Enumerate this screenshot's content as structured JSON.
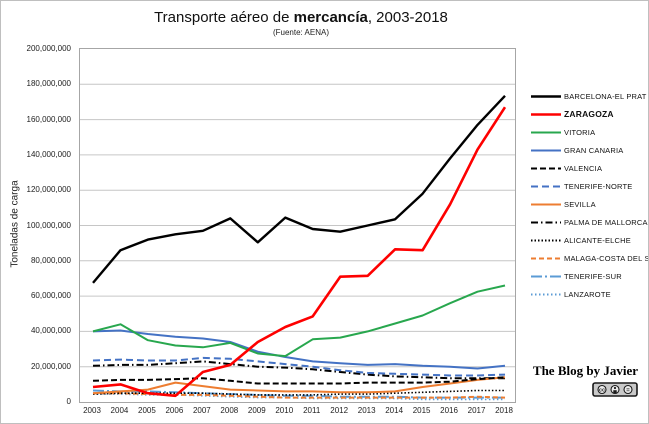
{
  "title": {
    "pre": "Transporte aéreo de ",
    "bold": "mercancía",
    "post": ", 2003-2018",
    "subtitle": "(Fuente: AENA)"
  },
  "axes": {
    "y_label": "Toneladas de carga"
  },
  "footer": {
    "credit": "The Blog by Javier",
    "license_badge": "creative-commons-badge"
  },
  "chart_data": {
    "type": "line",
    "title": "Transporte aéreo de mercancía, 2003-2018",
    "subtitle": "(Fuente: AENA)",
    "xlabel": "",
    "ylabel": "Toneladas de carga",
    "ylim": [
      0,
      200000000
    ],
    "ytick_step": 20000000,
    "ytick_labels": [
      "0",
      "20,000,000",
      "40,000,000",
      "60,000,000",
      "80,000,000",
      "100,000,000",
      "120,000,000",
      "140,000,000",
      "160,000,000",
      "180,000,000",
      "200,000,000"
    ],
    "grid": "horizontal",
    "legend_position": "right",
    "categories": [
      "2003",
      "2004",
      "2005",
      "2006",
      "2007",
      "2008",
      "2009",
      "2010",
      "2011",
      "2012",
      "2013",
      "2014",
      "2015",
      "2016",
      "2017",
      "2018"
    ],
    "series": [
      {
        "name": "BARCELONA-EL PRAT",
        "color": "#000000",
        "dash": "",
        "width": 2.4,
        "bold": false,
        "values": [
          67500000,
          86000000,
          92000000,
          95000000,
          97000000,
          104000000,
          90500000,
          104500000,
          98000000,
          96500000,
          100000000,
          103500000,
          118000000,
          138000000,
          157000000,
          173500000
        ]
      },
      {
        "name": "ZARAGOZA",
        "color": "#fe0000",
        "dash": "",
        "width": 2.6,
        "bold": true,
        "values": [
          8500000,
          10000000,
          5000000,
          3500000,
          17000000,
          21000000,
          34000000,
          42500000,
          48500000,
          71000000,
          71500000,
          86500000,
          86000000,
          112000000,
          143000000,
          167000000
        ]
      },
      {
        "name": "VITORIA",
        "color": "#28a74e",
        "dash": "",
        "width": 2,
        "bold": false,
        "values": [
          40000000,
          44000000,
          35000000,
          32000000,
          31000000,
          33500000,
          27500000,
          26000000,
          35500000,
          36500000,
          40000000,
          44500000,
          49000000,
          56000000,
          62500000,
          66000000
        ]
      },
      {
        "name": "GRAN CANARIA",
        "color": "#4472c4",
        "dash": "",
        "width": 2,
        "bold": false,
        "values": [
          40000000,
          40500000,
          38500000,
          37000000,
          36000000,
          34000000,
          28500000,
          25500000,
          23000000,
          22000000,
          21000000,
          21500000,
          20500000,
          20000000,
          19000000,
          20500000
        ]
      },
      {
        "name": "VALENCIA",
        "color": "#000000",
        "dash": "6,3",
        "width": 2,
        "bold": false,
        "values": [
          12000000,
          12500000,
          12500000,
          13000000,
          13500000,
          12000000,
          10500000,
          10500000,
          10500000,
          10500000,
          11000000,
          11000000,
          11000000,
          11500000,
          13000000,
          14000000
        ]
      },
      {
        "name": "TENERIFE-NORTE",
        "color": "#4472c4",
        "dash": "7,4",
        "width": 2,
        "bold": false,
        "values": [
          23500000,
          24000000,
          23500000,
          23500000,
          25000000,
          24500000,
          23000000,
          21500000,
          20000000,
          18000000,
          16500000,
          16000000,
          15500000,
          15000000,
          15000000,
          15500000
        ]
      },
      {
        "name": "SEVILLA",
        "color": "#ed7d31",
        "dash": "",
        "width": 2,
        "bold": false,
        "values": [
          5000000,
          6000000,
          7000000,
          11000000,
          9000000,
          7000000,
          6500000,
          6000000,
          6000000,
          5500000,
          5500000,
          6000000,
          8500000,
          10500000,
          12500000,
          14000000
        ]
      },
      {
        "name": "PALMA DE MALLORCA",
        "color": "#000000",
        "dash": "7,3,1.5,3",
        "width": 2,
        "bold": false,
        "values": [
          20500000,
          21000000,
          21000000,
          22000000,
          23000000,
          21500000,
          20000000,
          19500000,
          18500000,
          17000000,
          15500000,
          14500000,
          14000000,
          13500000,
          13500000,
          13500000
        ]
      },
      {
        "name": "ALICANTE-ELCHE",
        "color": "#000000",
        "dash": "1.5,2",
        "width": 1.6,
        "bold": false,
        "values": [
          4500000,
          5000000,
          5000000,
          5000000,
          5000000,
          4500000,
          4000000,
          4000000,
          4000000,
          4500000,
          4500000,
          5000000,
          5500000,
          6000000,
          6500000,
          6500000
        ]
      },
      {
        "name": "MALAGA-COSTA DEL SOL",
        "color": "#ed7d31",
        "dash": "5,3",
        "width": 2,
        "bold": false,
        "values": [
          5000000,
          5000000,
          4500000,
          4000000,
          4000000,
          3500000,
          3000000,
          2500000,
          2500000,
          2500000,
          2500000,
          2500000,
          2500000,
          2500000,
          3000000,
          2500000
        ]
      },
      {
        "name": "TENERIFE-SUR",
        "color": "#5b9bd5",
        "dash": "11,3,2,3",
        "width": 2,
        "bold": false,
        "values": [
          6500000,
          6000000,
          6000000,
          5500000,
          5000000,
          4500000,
          4000000,
          3500000,
          3500000,
          3000000,
          3000000,
          3000000,
          2500000,
          2500000,
          2500000,
          2500000
        ]
      },
      {
        "name": "LANZAROTE",
        "color": "#5b9bd5",
        "dash": "1.5,2.5",
        "width": 1.6,
        "bold": false,
        "values": [
          4500000,
          4500000,
          4000000,
          4000000,
          3500000,
          3000000,
          2500000,
          2500000,
          2000000,
          2000000,
          2000000,
          2000000,
          1500000,
          1500000,
          1500000,
          1500000
        ]
      }
    ]
  }
}
